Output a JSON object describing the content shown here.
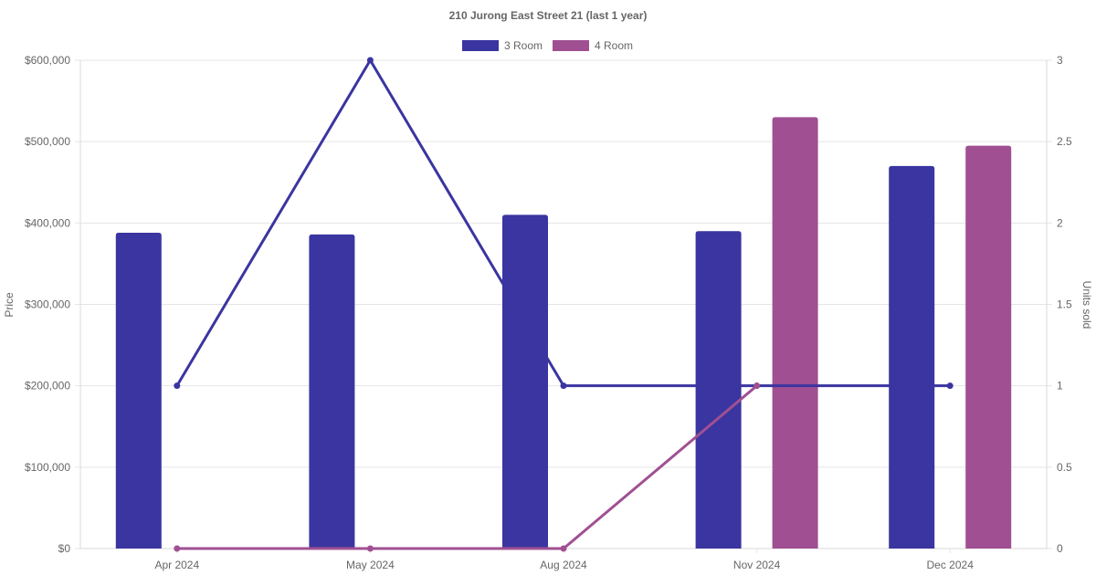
{
  "chart_data": {
    "type": "bar",
    "title": "210 Jurong East Street 21 (last 1 year)",
    "categories": [
      "Apr 2024",
      "May 2024",
      "Aug 2024",
      "Nov 2024",
      "Dec 2024"
    ],
    "series": [
      {
        "name": "3 Room",
        "color": "#3a35a0",
        "price": [
          388000,
          386000,
          410000,
          390000,
          470000
        ],
        "units_sold": [
          1,
          3,
          1,
          1,
          1
        ]
      },
      {
        "name": "4 Room",
        "color": "#a05092",
        "price": [
          null,
          null,
          null,
          530000,
          495000
        ],
        "units_sold": [
          0,
          0,
          0,
          1,
          null
        ]
      }
    ],
    "y_left": {
      "label": "Price",
      "ylim": [
        0,
        600000
      ],
      "ticks": [
        "$0",
        "$100,000",
        "$200,000",
        "$300,000",
        "$400,000",
        "$500,000",
        "$600,000"
      ]
    },
    "y_right": {
      "label": "Units sold",
      "ylim": [
        0,
        3
      ],
      "ticks": [
        "0",
        "0.5",
        "1",
        "1.5",
        "2",
        "2.5",
        "3"
      ]
    },
    "grid": true,
    "legend_position": "top"
  }
}
